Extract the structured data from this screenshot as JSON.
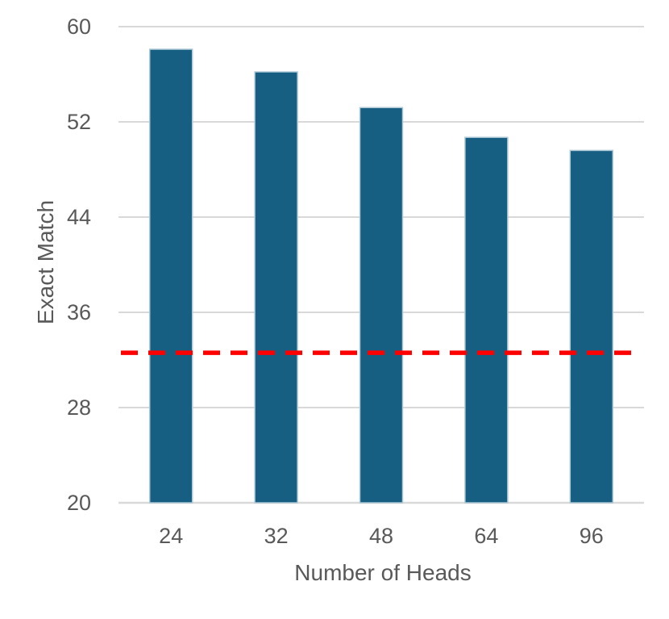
{
  "chart_data": {
    "type": "bar",
    "title": "",
    "categories": [
      "24",
      "32",
      "48",
      "64",
      "96"
    ],
    "values": [
      58.1,
      56.2,
      53.2,
      50.7,
      49.6
    ],
    "xlabel": "Number of Heads",
    "ylabel": "Exact Match",
    "ylim": [
      20,
      60
    ],
    "yticks": [
      20,
      28,
      36,
      44,
      52,
      60
    ],
    "grid": "horizontal",
    "legend": "none",
    "reference_line": {
      "value": 32.6,
      "color": "#FF0000",
      "style": "dashed"
    },
    "colors": {
      "bar_fill": "#175F82",
      "bar_edge": "#AFC9D6",
      "grid_line": "#D9D9D9",
      "axis_line": "#D9D9D9",
      "tick_text": "#595959",
      "background": "#FFFFFF"
    }
  }
}
